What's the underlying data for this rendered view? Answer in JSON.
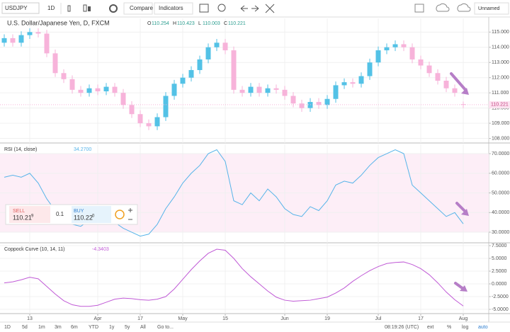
{
  "toolbar": {
    "symbol": "USDJPY",
    "interval": "1D",
    "compare": "Compare",
    "indicators": "Indicators",
    "layout": "Unnamed"
  },
  "chart_data": [
    {
      "type": "candlestick",
      "title": "U.S. Dollar/Japanese Yen, D, FXCM",
      "legend_keys": [
        "O",
        "H",
        "L",
        "C"
      ],
      "categories": [
        null,
        null,
        null,
        "13",
        null,
        null,
        null,
        null,
        null,
        null,
        null,
        "Apr",
        null,
        null,
        null,
        null,
        "17",
        null,
        null,
        null,
        null,
        "May",
        null,
        null,
        null,
        null,
        "15",
        null,
        null,
        null,
        null,
        null,
        null,
        "Jun",
        null,
        null,
        null,
        null,
        "19",
        null,
        null,
        null,
        null,
        null,
        "Jul",
        null,
        null,
        null,
        null,
        "17",
        null,
        null,
        null,
        null,
        "Aug"
      ],
      "open": [
        114.3,
        114.6,
        114.3,
        114.8,
        115.0,
        114.9,
        113.6,
        112.3,
        111.9,
        111.2,
        111.0,
        111.3,
        111.1,
        111.4,
        111.0,
        110.2,
        109.6,
        109.0,
        108.8,
        109.4,
        110.8,
        111.6,
        112.0,
        112.5,
        113.2,
        114.0,
        114.3,
        113.8,
        111.2,
        111.0,
        111.4,
        111.0,
        111.3,
        111.2,
        110.8,
        110.3,
        110.0,
        110.4,
        110.2,
        110.6,
        111.5,
        111.7,
        111.6,
        112.1,
        113.0,
        113.8,
        114.0,
        114.2,
        114.0,
        113.2,
        112.8,
        112.3,
        111.8,
        111.3,
        110.254
      ],
      "high": [
        114.85,
        114.85,
        115.05,
        115.25,
        115.25,
        115.15,
        113.85,
        112.55,
        112.15,
        111.45,
        111.55,
        111.55,
        111.65,
        111.65,
        111.25,
        110.45,
        109.85,
        109.25,
        109.65,
        111.05,
        111.85,
        112.25,
        112.75,
        113.45,
        114.25,
        114.55,
        114.55,
        114.05,
        111.45,
        111.65,
        111.65,
        111.55,
        111.55,
        111.45,
        111.05,
        110.55,
        110.65,
        110.65,
        110.85,
        111.75,
        111.95,
        111.95,
        112.35,
        113.25,
        114.05,
        114.25,
        114.45,
        114.45,
        114.25,
        113.45,
        113.05,
        112.55,
        112.05,
        111.55,
        110.423
      ],
      "low": [
        114.05,
        114.05,
        114.05,
        114.55,
        114.65,
        113.35,
        112.05,
        111.65,
        110.95,
        110.75,
        110.75,
        110.85,
        110.85,
        110.75,
        109.95,
        109.35,
        108.75,
        108.55,
        108.55,
        109.15,
        110.55,
        111.35,
        111.75,
        112.25,
        112.95,
        113.75,
        113.55,
        110.95,
        110.75,
        110.75,
        110.75,
        110.75,
        110.95,
        110.55,
        110.05,
        109.75,
        109.75,
        109.95,
        109.95,
        110.35,
        111.25,
        111.35,
        111.35,
        111.85,
        112.75,
        113.55,
        113.75,
        113.75,
        112.95,
        112.55,
        112.05,
        111.55,
        111.05,
        110.75,
        110.003
      ],
      "close": [
        114.6,
        114.3,
        114.8,
        115.0,
        114.9,
        113.6,
        112.3,
        111.9,
        111.2,
        111.0,
        111.3,
        111.1,
        111.4,
        111.0,
        110.2,
        109.6,
        109.0,
        108.8,
        109.4,
        110.8,
        111.6,
        112.0,
        112.5,
        113.2,
        114.0,
        114.3,
        113.8,
        111.2,
        111.0,
        111.4,
        111.0,
        111.3,
        111.2,
        110.8,
        110.3,
        110.0,
        110.4,
        110.2,
        110.6,
        111.5,
        111.7,
        111.6,
        112.1,
        113.0,
        113.8,
        114.0,
        114.2,
        114.0,
        113.2,
        112.8,
        112.3,
        111.8,
        111.3,
        111.0,
        110.221
      ],
      "up_color": "#53c2e6",
      "down_color": "#f7b3da",
      "ylim": [
        107.7,
        115.9
      ],
      "yticks": [
        {
          "value": 115,
          "label": "115.000"
        },
        {
          "value": 114,
          "label": "114.000"
        },
        {
          "value": 113,
          "label": "113.000"
        },
        {
          "value": 112,
          "label": "112.000"
        },
        {
          "value": 111,
          "label": "111.000"
        },
        {
          "value": 110,
          "label": "110.000"
        },
        {
          "value": 109,
          "label": "109.000"
        },
        {
          "value": 108,
          "label": "108.000"
        }
      ],
      "grid": true
    },
    {
      "type": "line",
      "title": "RSI (14, close)",
      "last_label": "34.2700",
      "color": "#56b4e9",
      "values": [
        58,
        59,
        58,
        60,
        55,
        47,
        41,
        38,
        34,
        33,
        36,
        38,
        37,
        35,
        32,
        30,
        28,
        29,
        34,
        42,
        48,
        55,
        60,
        64,
        70,
        72,
        66,
        46,
        44,
        50,
        46,
        52,
        48,
        42,
        39,
        38,
        43,
        41,
        46,
        54,
        56,
        55,
        59,
        64,
        68,
        70,
        72,
        70,
        54,
        50,
        46,
        42,
        38,
        40,
        34.27
      ],
      "band": [
        30,
        70
      ],
      "band_color": "#fdeef7",
      "ylim": [
        24.6,
        74.7
      ],
      "yticks": [
        {
          "value": 70,
          "label": "70.0000"
        },
        {
          "value": 60,
          "label": "60.0000"
        },
        {
          "value": 50,
          "label": "50.0000"
        },
        {
          "value": 40,
          "label": "40.0000"
        },
        {
          "value": 30,
          "label": "30.0000"
        }
      ],
      "grid": true
    },
    {
      "type": "line",
      "title": "Coppock Curve (10, 14, 11)",
      "last_label": "-4.3403",
      "color": "#c05ad6",
      "values": [
        0.2,
        0.4,
        0.8,
        1.3,
        1.0,
        -0.5,
        -2.0,
        -3.3,
        -4.1,
        -4.4,
        -4.4,
        -4.2,
        -3.6,
        -3.0,
        -2.8,
        -2.9,
        -3.1,
        -3.2,
        -3.0,
        -2.5,
        -1.0,
        0.9,
        2.8,
        4.5,
        6.0,
        6.8,
        6.6,
        5.0,
        3.0,
        1.4,
        0.0,
        -1.4,
        -2.6,
        -3.2,
        -3.4,
        -3.3,
        -3.2,
        -2.9,
        -2.6,
        -1.8,
        -0.8,
        0.5,
        1.6,
        2.6,
        3.4,
        4.0,
        4.2,
        4.3,
        3.8,
        3.0,
        1.8,
        0.2,
        -1.6,
        -3.1,
        -4.3403
      ],
      "ylim": [
        -5.83,
        7.92
      ],
      "yticks": [
        {
          "value": 7.5,
          "label": "7.5000"
        },
        {
          "value": 5,
          "label": "5.0000"
        },
        {
          "value": 2.5,
          "label": "2.5000"
        },
        {
          "value": 0,
          "label": "0.0000"
        },
        {
          "value": -2.5,
          "label": "-2.5000"
        },
        {
          "value": -5,
          "label": "-5.0000"
        }
      ],
      "grid": true
    }
  ],
  "trade_panel": {
    "sell_label": "SELL",
    "sell_price": "110.21",
    "sell_pip": "9",
    "quantity": "0.1",
    "buy_label": "BUY",
    "buy_price": "110.22",
    "buy_pip": "0"
  },
  "bottom_bar": {
    "ranges": [
      "1D",
      "5d",
      "1m",
      "3m",
      "6m",
      "YTD",
      "1y",
      "5y",
      "All",
      "Go to..."
    ],
    "time": "08:19:26 (UTC)",
    "options": [
      "ext",
      "%",
      "log",
      "auto"
    ]
  }
}
